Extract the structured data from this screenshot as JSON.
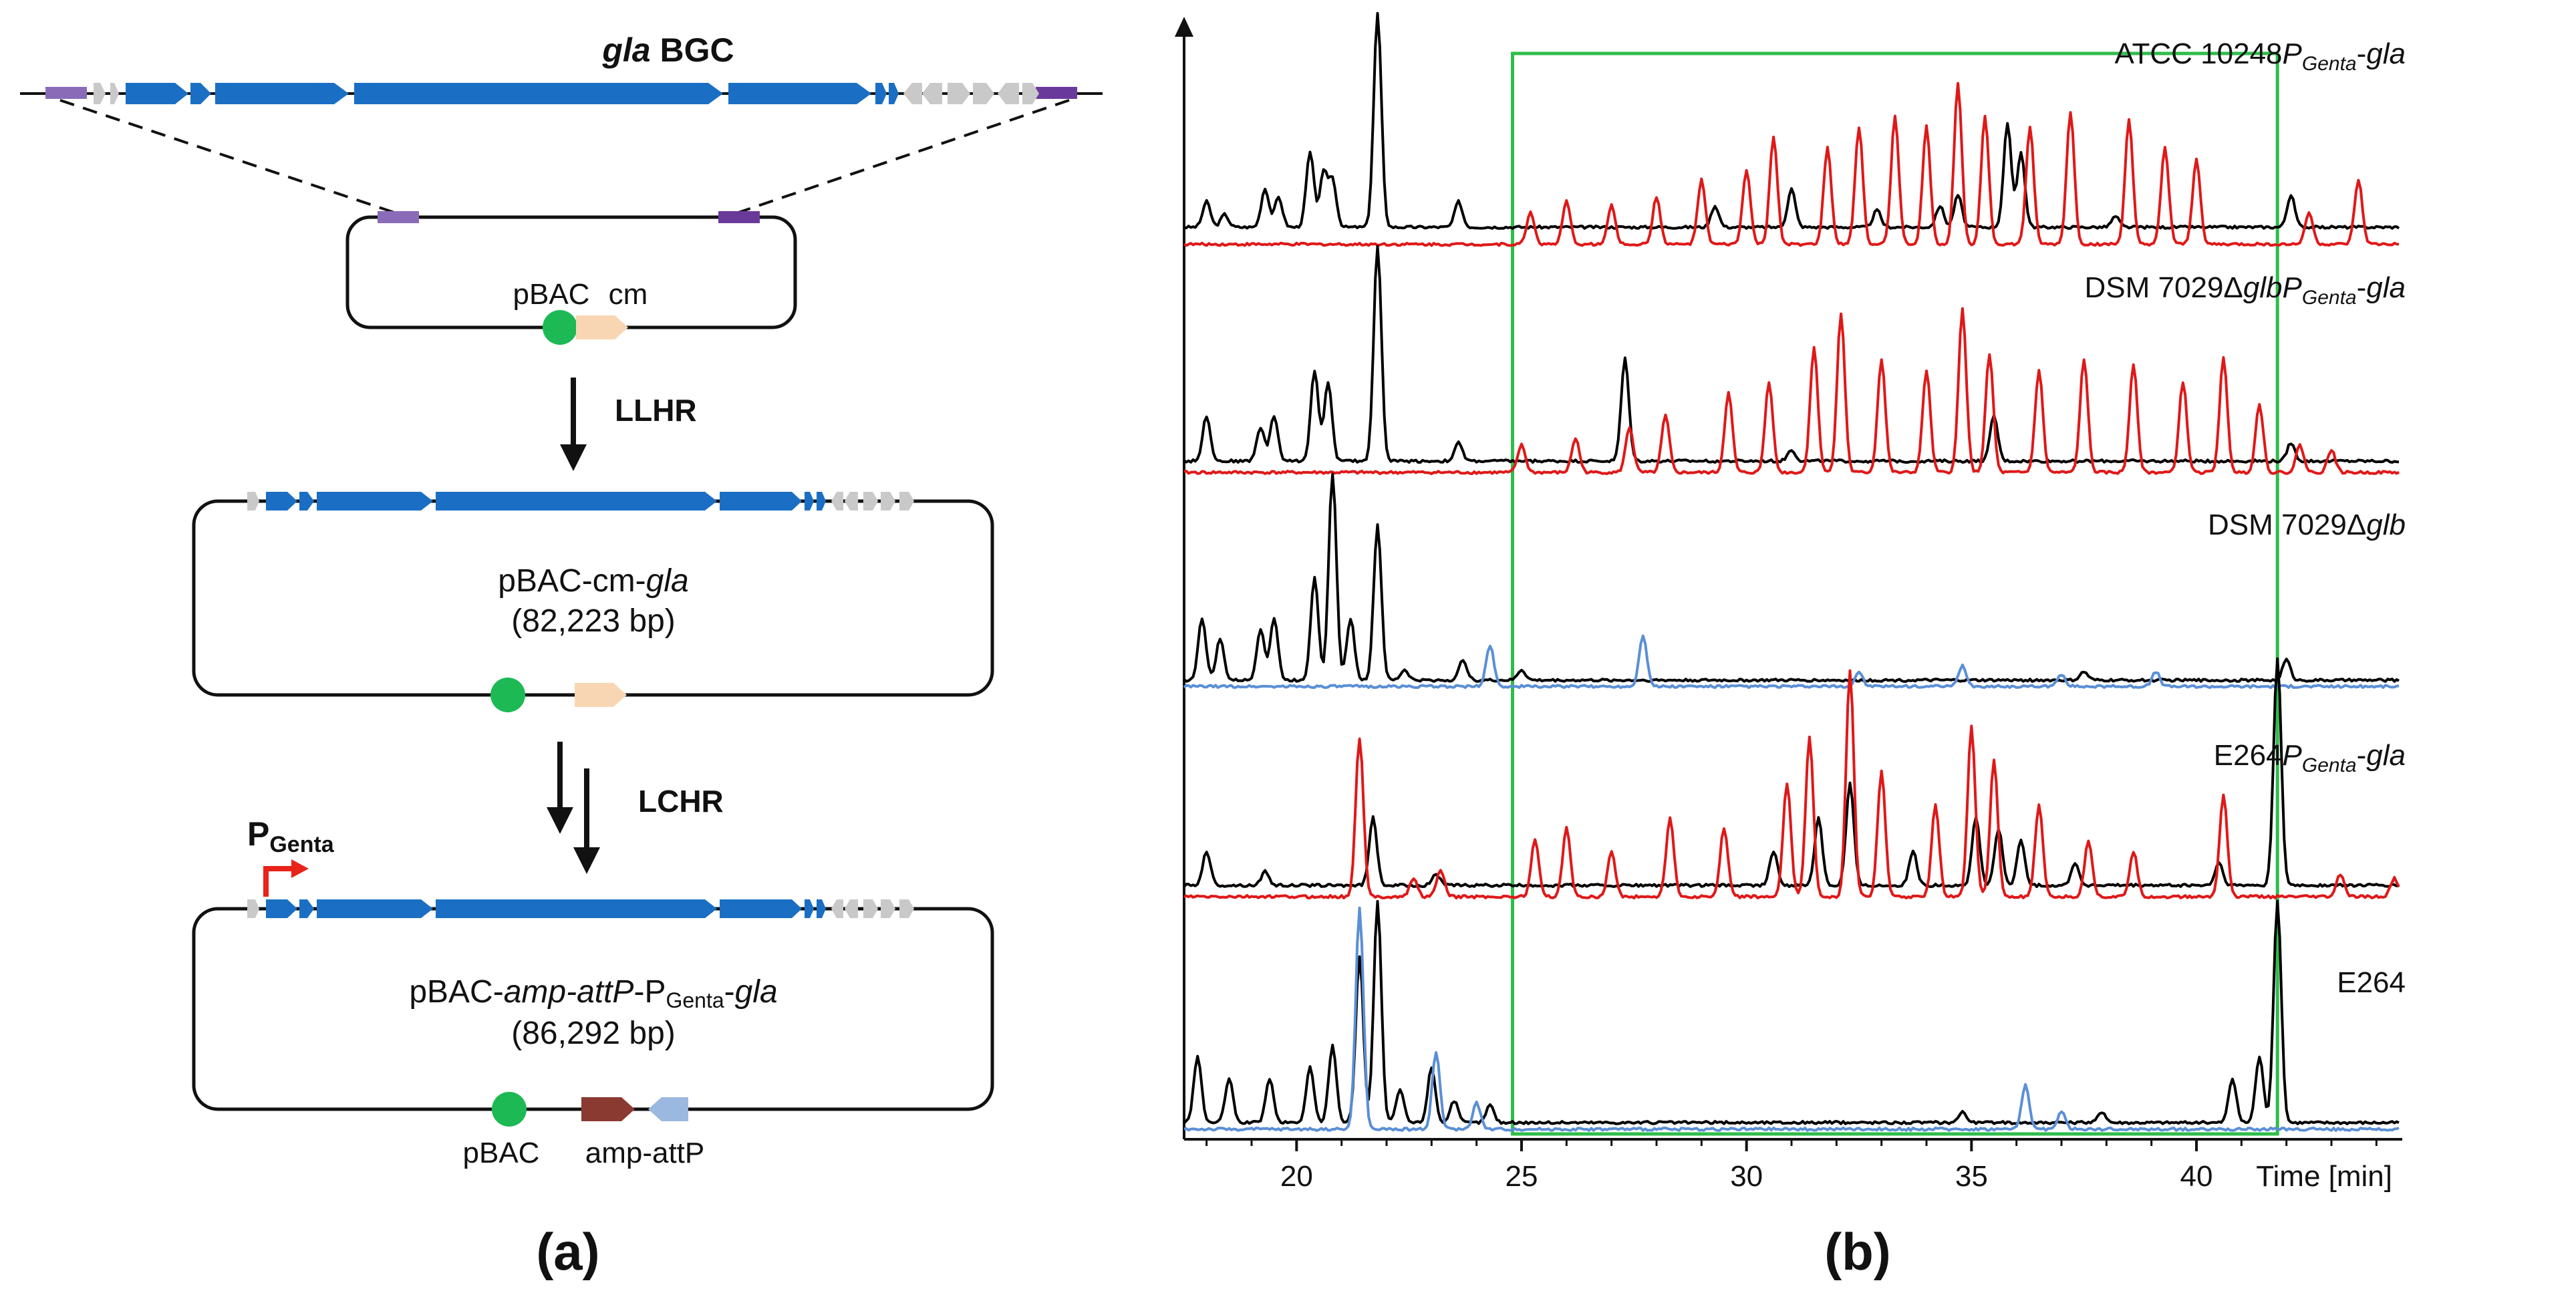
{
  "figure": {
    "panel_a_label": "(a)",
    "panel_b_label": "(b)"
  },
  "panel_a": {
    "bgc": {
      "name_italic": "gla",
      "name_rest": " BGC"
    },
    "step1": {
      "label": "LLHR"
    },
    "step2": {
      "label": "LCHR"
    },
    "plasmid1": {
      "pbac_label": "pBAC",
      "cm_label": "cm"
    },
    "plasmid2": {
      "name_prefix": "pBAC-cm-",
      "name_italic": "gla",
      "size": "(82,223 bp)"
    },
    "plasmid3": {
      "promoter_main": "P",
      "promoter_sub": "Genta",
      "name_prefix": "pBAC-",
      "name_italic": "amp-attP",
      "name_mid": "-P",
      "name_sub": "Genta",
      "name_dash": "-",
      "name_italic2": "gla",
      "size": "(86,292 bp)",
      "pbac_label": "pBAC",
      "amp_label": "amp-attP"
    },
    "colors": {
      "gene_blue": "#1a6fc4",
      "gene_grey": "#c9c9c9",
      "homology_purple": "#7a4fa0",
      "pbac_green": "#1db954",
      "cm_peach": "#f9d6b3",
      "amp_red": "#8b3a32",
      "attp_blue": "#9bb8e0",
      "promoter_red": "#e8231a"
    }
  },
  "panel_b": {
    "chart_data": {
      "type": "line",
      "title": "",
      "xlabel": "Time [min]",
      "ylabel": "",
      "xlim": [
        17.5,
        44.5
      ],
      "xticks": [
        20,
        25,
        30,
        35,
        40
      ],
      "highlight_window": [
        24.8,
        41.8
      ],
      "highlight_color": "#2ebd4a",
      "traces": [
        {
          "name": "ATCC 10248PGenta-gla",
          "label_main": "ATCC 10248",
          "label_sub_P": "P",
          "label_sub": "Genta",
          "label_tail": "-gla",
          "series": [
            {
              "color": "#000000",
              "baseline": 0.0,
              "peaks": [
                [
                  18.0,
                  0.12
                ],
                [
                  18.4,
                  0.06
                ],
                [
                  19.3,
                  0.18
                ],
                [
                  19.6,
                  0.14
                ],
                [
                  20.3,
                  0.35
                ],
                [
                  20.6,
                  0.25
                ],
                [
                  20.8,
                  0.22
                ],
                [
                  21.8,
                  1.0
                ],
                [
                  23.6,
                  0.12
                ],
                [
                  29.3,
                  0.1
                ],
                [
                  31.0,
                  0.18
                ],
                [
                  32.9,
                  0.08
                ],
                [
                  34.3,
                  0.1
                ],
                [
                  34.7,
                  0.15
                ],
                [
                  35.8,
                  0.48
                ],
                [
                  36.1,
                  0.35
                ],
                [
                  38.2,
                  0.05
                ],
                [
                  42.1,
                  0.15
                ]
              ]
            },
            {
              "color": "#e01818",
              "baseline": -0.08,
              "peaks": [
                [
                  25.2,
                  0.15
                ],
                [
                  26.0,
                  0.2
                ],
                [
                  27.0,
                  0.18
                ],
                [
                  28.0,
                  0.22
                ],
                [
                  29.0,
                  0.3
                ],
                [
                  30.0,
                  0.35
                ],
                [
                  30.6,
                  0.5
                ],
                [
                  31.8,
                  0.45
                ],
                [
                  32.5,
                  0.55
                ],
                [
                  33.3,
                  0.6
                ],
                [
                  34.0,
                  0.55
                ],
                [
                  34.7,
                  0.75
                ],
                [
                  35.3,
                  0.6
                ],
                [
                  36.3,
                  0.55
                ],
                [
                  37.2,
                  0.62
                ],
                [
                  38.5,
                  0.58
                ],
                [
                  39.3,
                  0.45
                ],
                [
                  40.0,
                  0.4
                ],
                [
                  42.5,
                  0.15
                ],
                [
                  43.6,
                  0.3
                ]
              ]
            }
          ]
        },
        {
          "name": "DSM 7029ΔglbPGenta-gla",
          "label_main": "DSM 7029Δ",
          "label_italic": "glb",
          "label_sub_P": "P",
          "label_sub": "Genta",
          "label_tail": "-gla",
          "series": [
            {
              "color": "#000000",
              "baseline": 0.0,
              "peaks": [
                [
                  18.0,
                  0.2
                ],
                [
                  19.2,
                  0.15
                ],
                [
                  19.5,
                  0.2
                ],
                [
                  20.4,
                  0.4
                ],
                [
                  20.7,
                  0.35
                ],
                [
                  21.8,
                  0.95
                ],
                [
                  23.6,
                  0.08
                ],
                [
                  27.3,
                  0.45
                ],
                [
                  31.0,
                  0.05
                ],
                [
                  35.5,
                  0.2
                ],
                [
                  42.1,
                  0.08
                ]
              ]
            },
            {
              "color": "#e01818",
              "baseline": -0.05,
              "peaks": [
                [
                  25.0,
                  0.12
                ],
                [
                  26.2,
                  0.15
                ],
                [
                  27.4,
                  0.2
                ],
                [
                  28.2,
                  0.25
                ],
                [
                  29.6,
                  0.35
                ],
                [
                  30.5,
                  0.4
                ],
                [
                  31.5,
                  0.55
                ],
                [
                  32.1,
                  0.7
                ],
                [
                  33.0,
                  0.5
                ],
                [
                  34.0,
                  0.45
                ],
                [
                  34.8,
                  0.72
                ],
                [
                  35.4,
                  0.52
                ],
                [
                  36.5,
                  0.45
                ],
                [
                  37.5,
                  0.5
                ],
                [
                  38.6,
                  0.48
                ],
                [
                  39.7,
                  0.4
                ],
                [
                  40.6,
                  0.5
                ],
                [
                  41.4,
                  0.3
                ],
                [
                  42.3,
                  0.12
                ],
                [
                  43.0,
                  0.1
                ]
              ]
            }
          ]
        },
        {
          "name": "DSM 7029Δglb",
          "label_main": "DSM 7029Δ",
          "label_italic": "glb",
          "series": [
            {
              "color": "#000000",
              "baseline": 0.0,
              "peaks": [
                [
                  17.9,
                  0.3
                ],
                [
                  18.3,
                  0.2
                ],
                [
                  19.2,
                  0.25
                ],
                [
                  19.5,
                  0.3
                ],
                [
                  20.4,
                  0.5
                ],
                [
                  20.8,
                  1.0
                ],
                [
                  21.2,
                  0.3
                ],
                [
                  21.8,
                  0.75
                ],
                [
                  22.4,
                  0.05
                ],
                [
                  23.7,
                  0.1
                ],
                [
                  25.0,
                  0.05
                ],
                [
                  37.5,
                  0.04
                ],
                [
                  42.0,
                  0.1
                ]
              ]
            },
            {
              "color": "#5b8fd6",
              "baseline": -0.03,
              "peaks": [
                [
                  24.3,
                  0.2
                ],
                [
                  27.7,
                  0.25
                ],
                [
                  32.5,
                  0.07
                ],
                [
                  34.8,
                  0.1
                ],
                [
                  37.0,
                  0.06
                ],
                [
                  39.1,
                  0.07
                ]
              ]
            }
          ]
        },
        {
          "name": "E264PGenta-gla",
          "label_main": "E264",
          "label_sub_P": "P",
          "label_sub": "Genta",
          "label_tail": "-gla",
          "series": [
            {
              "color": "#000000",
              "baseline": 0.0,
              "peaks": [
                [
                  18.0,
                  0.15
                ],
                [
                  19.3,
                  0.06
                ],
                [
                  21.7,
                  0.3
                ],
                [
                  23.1,
                  0.05
                ],
                [
                  30.6,
                  0.15
                ],
                [
                  31.6,
                  0.3
                ],
                [
                  32.3,
                  0.45
                ],
                [
                  33.7,
                  0.15
                ],
                [
                  35.1,
                  0.3
                ],
                [
                  35.6,
                  0.25
                ],
                [
                  36.1,
                  0.2
                ],
                [
                  37.3,
                  0.1
                ],
                [
                  40.5,
                  0.1
                ],
                [
                  41.8,
                  1.0
                ]
              ]
            },
            {
              "color": "#e01818",
              "baseline": -0.05,
              "peaks": [
                [
                  21.4,
                  0.7
                ],
                [
                  22.6,
                  0.08
                ],
                [
                  23.2,
                  0.12
                ],
                [
                  25.3,
                  0.25
                ],
                [
                  26.0,
                  0.3
                ],
                [
                  27.0,
                  0.2
                ],
                [
                  28.3,
                  0.35
                ],
                [
                  29.5,
                  0.3
                ],
                [
                  30.9,
                  0.5
                ],
                [
                  31.4,
                  0.7
                ],
                [
                  32.3,
                  1.0
                ],
                [
                  33.0,
                  0.55
                ],
                [
                  34.2,
                  0.4
                ],
                [
                  35.0,
                  0.75
                ],
                [
                  35.5,
                  0.6
                ],
                [
                  36.5,
                  0.4
                ],
                [
                  37.6,
                  0.25
                ],
                [
                  38.6,
                  0.2
                ],
                [
                  40.6,
                  0.45
                ],
                [
                  43.2,
                  0.1
                ],
                [
                  44.4,
                  0.08
                ]
              ]
            }
          ]
        },
        {
          "name": "E264",
          "label_main": "E264",
          "series": [
            {
              "color": "#000000",
              "baseline": 0.0,
              "peaks": [
                [
                  17.8,
                  0.3
                ],
                [
                  18.5,
                  0.2
                ],
                [
                  19.4,
                  0.2
                ],
                [
                  20.3,
                  0.25
                ],
                [
                  20.8,
                  0.35
                ],
                [
                  21.4,
                  0.75
                ],
                [
                  21.8,
                  1.0
                ],
                [
                  22.3,
                  0.15
                ],
                [
                  23.0,
                  0.25
                ],
                [
                  23.5,
                  0.1
                ],
                [
                  24.3,
                  0.08
                ],
                [
                  34.8,
                  0.05
                ],
                [
                  37.9,
                  0.05
                ],
                [
                  40.8,
                  0.2
                ],
                [
                  41.4,
                  0.3
                ],
                [
                  41.8,
                  1.0
                ]
              ]
            },
            {
              "color": "#5b8fd6",
              "baseline": -0.03,
              "peaks": [
                [
                  21.4,
                  1.0
                ],
                [
                  23.1,
                  0.35
                ],
                [
                  24.0,
                  0.12
                ],
                [
                  36.2,
                  0.2
                ],
                [
                  37.0,
                  0.08
                ]
              ]
            }
          ]
        }
      ]
    }
  }
}
